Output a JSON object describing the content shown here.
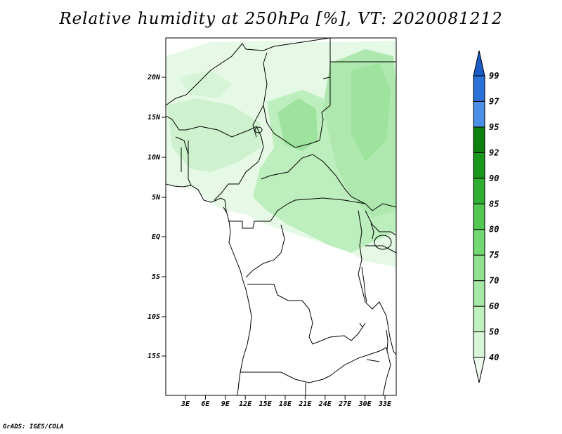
{
  "title": "Relative humidity at 250hPa [%], VT: 2020081212",
  "credit": "GrADS: IGES/COLA",
  "map": {
    "lon_range": [
      0,
      34
    ],
    "lat_range": [
      -20,
      24.5
    ],
    "lat_ticks": [
      "20N",
      "15N",
      "10N",
      "5N",
      "EQ",
      "5S",
      "10S",
      "15S"
    ],
    "lon_ticks": [
      "3E",
      "6E",
      "9E",
      "12E",
      "15E",
      "18E",
      "21E",
      "24E",
      "27E",
      "30E",
      "33E"
    ]
  },
  "colorbar": {
    "levels": [
      "40",
      "50",
      "60",
      "70",
      "75",
      "80",
      "85",
      "90",
      "92",
      "95",
      "97",
      "99"
    ],
    "colors": [
      "#f0fbf0",
      "#d8f5d8",
      "#bff0bf",
      "#a6e8a6",
      "#8fe08f",
      "#72d872",
      "#52c852",
      "#30b030",
      "#189818",
      "#0d800d",
      "#4a90e8",
      "#2a72d8",
      "#1a5cc8"
    ]
  }
}
